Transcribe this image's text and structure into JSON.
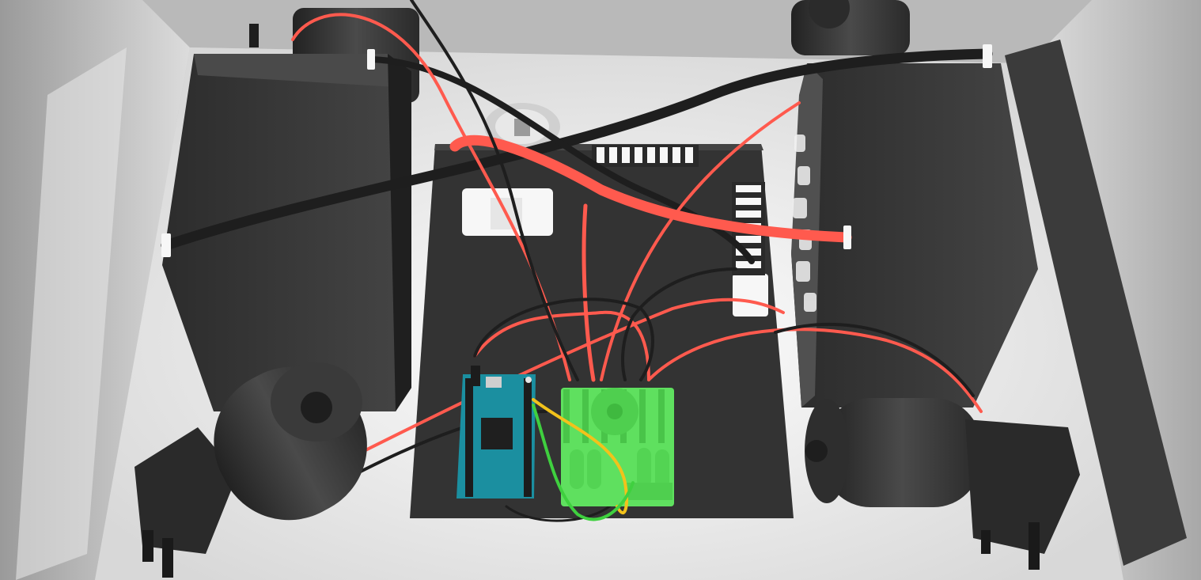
{
  "scene": {
    "colors": {
      "enclosure_floor": "#f2f2f2",
      "enclosure_wall": "#d4d4d4",
      "battery": "#3a3a3a",
      "mount_plate": "#333333",
      "wire_red": "#ff5a4e",
      "wire_black": "#1e1e1e",
      "arduino_board": "#1b8fa0",
      "motor_driver": "#5fe05f",
      "wire_yellow": "#f2c21b",
      "terminal_white": "#f7f7f7"
    },
    "components": {
      "battery_left": "battery",
      "battery_right": "battery",
      "mount_plate": "mounting-plate",
      "arduino": "arduino-board",
      "motor_driver": "motor-driver-with-fan",
      "motor_left": "dc-gear-motor",
      "motor_right": "dc-gear-motor",
      "motor_top_left": "dc-gear-motor",
      "motor_top_right": "dc-gear-motor",
      "terminal_block_top": "terminal-block",
      "terminal_block_right": "terminal-block",
      "connector_left": "wire-connector",
      "connector_right": "wire-connector",
      "switch": "toggle-switch"
    }
  }
}
